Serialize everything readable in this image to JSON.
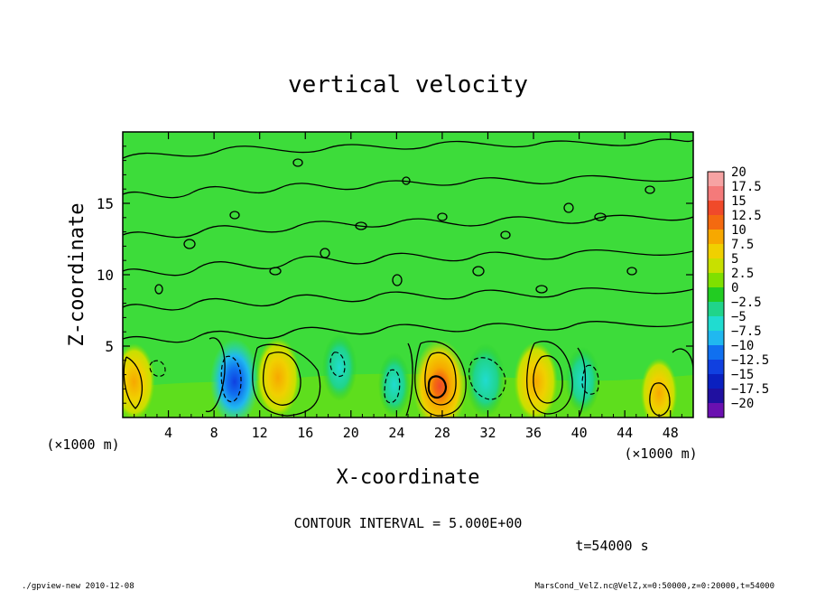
{
  "chart_data": {
    "type": "heatmap",
    "title": "vertical velocity",
    "xlabel": "X-coordinate",
    "ylabel": "Z-coordinate",
    "x_unit_label": "(×1000 m)",
    "y_unit_label": "(×1000 m)",
    "xlim": [
      0,
      50
    ],
    "ylim": [
      0,
      20
    ],
    "x_ticks": [
      "4",
      "8",
      "12",
      "16",
      "20",
      "24",
      "28",
      "32",
      "36",
      "40",
      "44",
      "48"
    ],
    "x_tick_values": [
      4,
      8,
      12,
      16,
      20,
      24,
      28,
      32,
      36,
      40,
      44,
      48
    ],
    "y_ticks": [
      "5",
      "10",
      "15"
    ],
    "y_tick_values": [
      5,
      10,
      15
    ],
    "colorbar": {
      "labels": [
        "20",
        "17.5",
        "15",
        "12.5",
        "10",
        "7.5",
        "5",
        "2.5",
        "0",
        "−2.5",
        "−5",
        "−7.5",
        "−10",
        "−12.5",
        "−15",
        "−17.5",
        "−20"
      ],
      "colors": [
        "#f6a3a3",
        "#f47a7a",
        "#f04a2a",
        "#f46a10",
        "#f7a800",
        "#f0d000",
        "#c8e000",
        "#7fe000",
        "#22cc22",
        "#20d48a",
        "#20dcd0",
        "#20b8f0",
        "#1070f0",
        "#1040e0",
        "#0a20c0",
        "#2010a0",
        "#6a10b0"
      ]
    },
    "cells": [
      {
        "x": 1,
        "z": 2.5,
        "w": 7
      },
      {
        "x": 9.8,
        "z": 2.5,
        "w": -10
      },
      {
        "x": 13.6,
        "z": 2.8,
        "w": 8
      },
      {
        "x": 19,
        "z": 3.5,
        "w": -4
      },
      {
        "x": 23.8,
        "z": 2.3,
        "w": -3
      },
      {
        "x": 27.8,
        "z": 2.2,
        "w": 12
      },
      {
        "x": 31.8,
        "z": 2.6,
        "w": -6
      },
      {
        "x": 36.2,
        "z": 2.5,
        "w": 8
      },
      {
        "x": 40.3,
        "z": 2.6,
        "w": -4
      },
      {
        "x": 47,
        "z": 1.7,
        "w": 5
      }
    ],
    "contour_interval_text": "CONTOUR INTERVAL = 5.000E+00",
    "time_text": "t=54000 s"
  },
  "footer": {
    "left": "./gpview-new  2010-12-08",
    "right": "MarsCond_VelZ.nc@VelZ,x=0:50000,z=0:20000,t=54000"
  },
  "colors": {
    "background_green": "#3ddc3a",
    "frame": "#000000"
  }
}
